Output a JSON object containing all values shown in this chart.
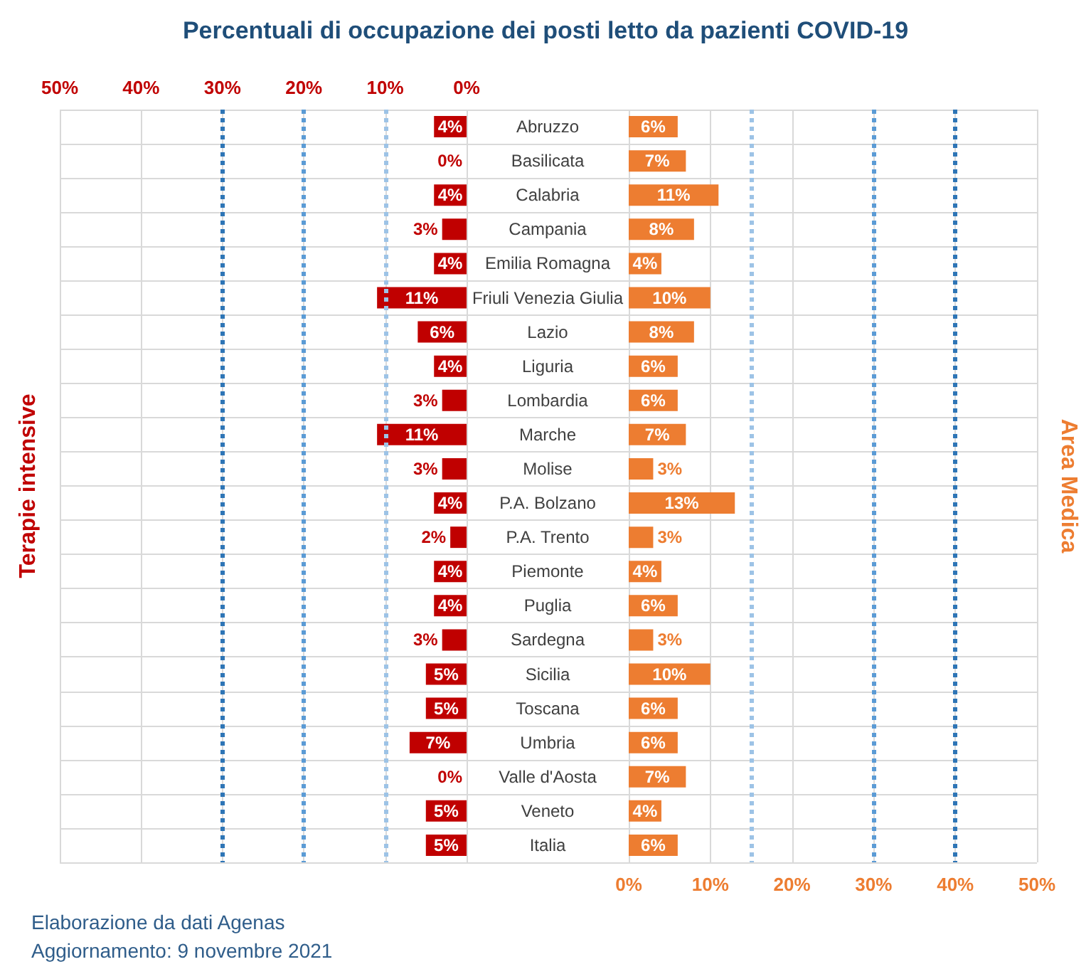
{
  "chart_data": [
    {
      "type": "bar",
      "orientation": "horizontal",
      "title": "Percentuali di occupazione dei posti letto da pazienti COVID-19",
      "categories": [
        "Abruzzo",
        "Basilicata",
        "Calabria",
        "Campania",
        "Emilia Romagna",
        "Friuli Venezia Giulia",
        "Lazio",
        "Liguria",
        "Lombardia",
        "Marche",
        "Molise",
        "P.A. Bolzano",
        "P.A. Trento",
        "Piemonte",
        "Puglia",
        "Sardegna",
        "Sicilia",
        "Toscana",
        "Umbria",
        "Valle d'Aosta",
        "Veneto",
        "Italia"
      ],
      "series": [
        {
          "name": "Terapie intensive",
          "color": "#c00000",
          "values": [
            4,
            0,
            4,
            3,
            4,
            11,
            6,
            4,
            3,
            11,
            3,
            4,
            2,
            4,
            4,
            3,
            5,
            5,
            7,
            0,
            5,
            5
          ],
          "value_labels": [
            "4%",
            "0%",
            "4%",
            "3%",
            "4%",
            "11%",
            "6%",
            "4%",
            "3%",
            "11%",
            "3%",
            "4%",
            "2%",
            "4%",
            "4%",
            "3%",
            "5%",
            "5%",
            "7%",
            "0%",
            "5%",
            "5%"
          ]
        }
      ],
      "xlim": [
        50,
        0
      ],
      "xticks": [
        {
          "value": 50,
          "label": "50%"
        },
        {
          "value": 40,
          "label": "40%"
        },
        {
          "value": 30,
          "label": "30%"
        },
        {
          "value": 20,
          "label": "20%"
        },
        {
          "value": 10,
          "label": "10%"
        },
        {
          "value": 0,
          "label": "0%"
        }
      ],
      "ref_lines": [
        {
          "axis": "x",
          "value": 10,
          "color": "#9dc3e6",
          "line_style": "dotted"
        },
        {
          "axis": "x",
          "value": 20,
          "color": "#5b9bd5",
          "line_style": "dotted"
        },
        {
          "axis": "x",
          "value": 30,
          "color": "#2e75b6",
          "line_style": "dotted"
        }
      ],
      "grid": true,
      "tick_labels": "x",
      "annotations": [
        "Elaborazione da dati Agenas",
        "Aggiornamento: 9 novembre 2021"
      ]
    },
    {
      "type": "bar",
      "orientation": "horizontal",
      "categories": [
        "Abruzzo",
        "Basilicata",
        "Calabria",
        "Campania",
        "Emilia Romagna",
        "Friuli Venezia Giulia",
        "Lazio",
        "Liguria",
        "Lombardia",
        "Marche",
        "Molise",
        "P.A. Bolzano",
        "P.A. Trento",
        "Piemonte",
        "Puglia",
        "Sardegna",
        "Sicilia",
        "Toscana",
        "Umbria",
        "Valle d'Aosta",
        "Veneto",
        "Italia"
      ],
      "series": [
        {
          "name": "Area Medica",
          "color": "#ed7d31",
          "values": [
            6,
            7,
            11,
            8,
            4,
            10,
            8,
            6,
            6,
            7,
            3,
            13,
            3,
            4,
            6,
            3,
            10,
            6,
            6,
            7,
            4,
            6
          ],
          "value_labels": [
            "6%",
            "7%",
            "11%",
            "8%",
            "4%",
            "10%",
            "8%",
            "6%",
            "6%",
            "7%",
            "3%",
            "13%",
            "3%",
            "4%",
            "6%",
            "3%",
            "10%",
            "6%",
            "6%",
            "7%",
            "4%",
            "6%"
          ]
        }
      ],
      "xlim": [
        0,
        50
      ],
      "xticks": [
        {
          "value": 0,
          "label": "0%"
        },
        {
          "value": 10,
          "label": "10%"
        },
        {
          "value": 20,
          "label": "20%"
        },
        {
          "value": 30,
          "label": "30%"
        },
        {
          "value": 40,
          "label": "40%"
        },
        {
          "value": 50,
          "label": "50%"
        }
      ],
      "ref_lines": [
        {
          "axis": "x",
          "value": 15,
          "color": "#9dc3e6",
          "line_style": "dotted"
        },
        {
          "axis": "x",
          "value": 30,
          "color": "#5b9bd5",
          "line_style": "dotted"
        },
        {
          "axis": "x",
          "value": 40,
          "color": "#2e75b6",
          "line_style": "dotted"
        }
      ],
      "grid": true
    }
  ]
}
